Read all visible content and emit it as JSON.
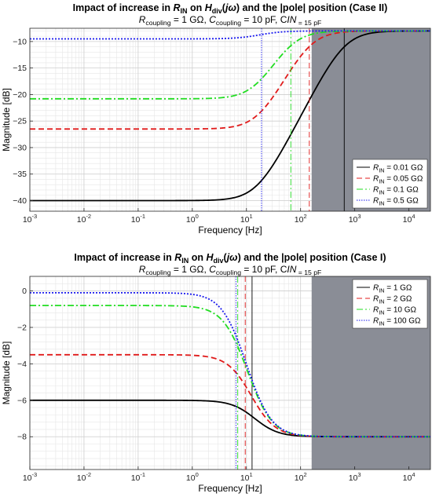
{
  "chart_data": [
    {
      "type": "line",
      "title_parts": [
        "Impact of increase in ",
        "R",
        "IN",
        " on ",
        "H",
        "div",
        "(",
        "jω",
        ")",
        " and the |pole| position (Case II)"
      ],
      "subtitle_parts": [
        "R",
        "coupling",
        " = 1 GΩ, ",
        "C",
        "coupling",
        " = 10 pF, ",
        "C",
        "IN",
        " = 15 pF"
      ],
      "xlabel": "Frequency [Hz]",
      "ylabel": "Magnitude [dB]",
      "xscale": "log",
      "xlim": [
        0.001,
        25000
      ],
      "ylim": [
        -42,
        -7.5
      ],
      "xticks": [
        0.001,
        0.01,
        0.1,
        1,
        10,
        100,
        1000,
        10000
      ],
      "xtick_labels": [
        [
          "10",
          "-3"
        ],
        [
          "10",
          "-2"
        ],
        [
          "10",
          "-1"
        ],
        [
          "10",
          "0"
        ],
        [
          "10",
          "1"
        ],
        [
          "10",
          "2"
        ],
        [
          "10",
          "3"
        ],
        [
          "10",
          "4"
        ]
      ],
      "yticks": [
        -10,
        -15,
        -20,
        -25,
        -30,
        -35,
        -40
      ],
      "ytick_labels": [
        "−10",
        "−15",
        "−20",
        "−25",
        "−30",
        "−35",
        "−40"
      ],
      "grid": true,
      "legend_position": "bottom-right",
      "shaded_region": {
        "x_from": 160,
        "x_to": 25000,
        "color": "#8a8d96"
      },
      "series": [
        {
          "legend": [
            "R",
            "IN",
            " = 0.01 GΩ"
          ],
          "color": "#000000",
          "dash": "",
          "width": 1.8,
          "dc_db": -40.0,
          "hf_db": -8.0,
          "pole_hz": 640
        },
        {
          "legend": [
            "R",
            "IN",
            " = 0.05 GΩ"
          ],
          "color": "#e01b1b",
          "dash": "7,4",
          "width": 1.8,
          "dc_db": -26.5,
          "hf_db": -8.0,
          "pole_hz": 145
        },
        {
          "legend": [
            "R",
            "IN",
            " = 0.1 GΩ"
          ],
          "color": "#22dd22",
          "dash": "8,3,2,3",
          "width": 1.8,
          "dc_db": -20.8,
          "hf_db": -8.0,
          "pole_hz": 66
        },
        {
          "legend": [
            "R",
            "IN",
            " = 0.5 GΩ"
          ],
          "color": "#1a1aee",
          "dash": "2,2",
          "width": 1.8,
          "dc_db": -9.5,
          "hf_db": -8.0,
          "pole_hz": 19
        }
      ]
    },
    {
      "type": "line",
      "title_parts": [
        "Impact of increase in ",
        "R",
        "IN",
        " on ",
        "H",
        "div",
        "(",
        "jω",
        ")",
        " and the |pole| position (Case I)"
      ],
      "subtitle_parts": [
        "R",
        "coupling",
        " = 1 GΩ, ",
        "C",
        "coupling",
        " = 10 pF, ",
        "C",
        "IN",
        " = 15 pF"
      ],
      "xlabel": "Frequency [Hz]",
      "ylabel": "Magnitude [dB]",
      "xscale": "log",
      "xlim": [
        0.001,
        25000
      ],
      "ylim": [
        -9.8,
        0.8
      ],
      "xticks": [
        0.001,
        0.01,
        0.1,
        1,
        10,
        100,
        1000,
        10000
      ],
      "xtick_labels": [
        [
          "10",
          "-3"
        ],
        [
          "10",
          "-2"
        ],
        [
          "10",
          "-1"
        ],
        [
          "10",
          "0"
        ],
        [
          "10",
          "1"
        ],
        [
          "10",
          "2"
        ],
        [
          "10",
          "3"
        ],
        [
          "10",
          "4"
        ]
      ],
      "yticks": [
        0,
        -2,
        -4,
        -6,
        -8
      ],
      "ytick_labels": [
        "0",
        "−2",
        "−4",
        "−6",
        "−8"
      ],
      "grid": true,
      "legend_position": "top-right",
      "shaded_region": {
        "x_from": 160,
        "x_to": 25000,
        "color": "#8a8d96"
      },
      "series": [
        {
          "legend": [
            "R",
            "IN",
            " = 1 GΩ"
          ],
          "color": "#000000",
          "dash": "",
          "width": 1.8,
          "dc_db": -6.0,
          "hf_db": -8.0,
          "pole_hz": 12.7
        },
        {
          "legend": [
            "R",
            "IN",
            " = 2 GΩ"
          ],
          "color": "#e01b1b",
          "dash": "7,4",
          "width": 1.8,
          "dc_db": -3.5,
          "hf_db": -8.0,
          "pole_hz": 9.5
        },
        {
          "legend": [
            "R",
            "IN",
            " = 10 GΩ"
          ],
          "color": "#22dd22",
          "dash": "8,3,2,3",
          "width": 1.8,
          "dc_db": -0.8,
          "hf_db": -8.0,
          "pole_hz": 6.9
        },
        {
          "legend": [
            "R",
            "IN",
            " = 100 GΩ"
          ],
          "color": "#1a1aee",
          "dash": "2,2",
          "width": 1.8,
          "dc_db": -0.1,
          "hf_db": -8.0,
          "pole_hz": 6.4
        }
      ]
    }
  ]
}
